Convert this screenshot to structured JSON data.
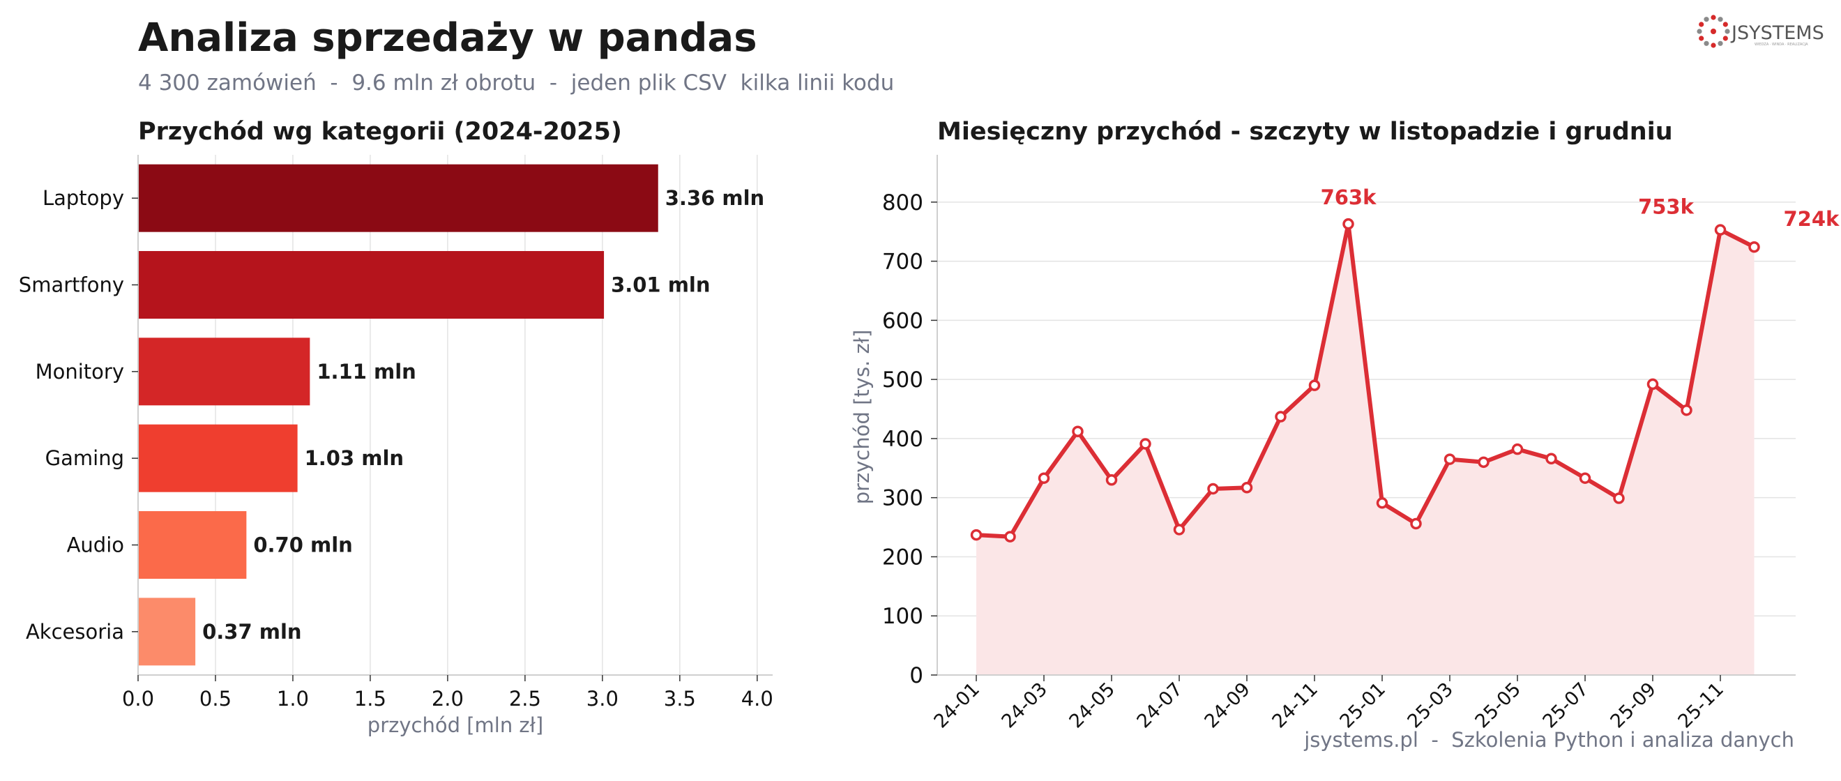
{
  "header": {
    "title": "Analiza sprzedaży w pandas",
    "subtitle": "4 300 zamówień  -  9.6 mln zł obrotu  -  jeden plik CSV  kilka linii kodu"
  },
  "logo": {
    "text": "JSYSTEMS",
    "tagline": "WIEDZA · WINDA · REALIZACJA"
  },
  "footer": {
    "text": "jsystems.pl  -  Szkolenia Python i analiza danych"
  },
  "colors": {
    "bars": [
      "#8b0a14",
      "#b5141c",
      "#d42627",
      "#ef3e2f",
      "#fb6a4a",
      "#fc8b6a"
    ],
    "line": "#dc2e35",
    "fill": "#fbe6e7"
  },
  "chart_data": [
    {
      "type": "bar",
      "orientation": "horizontal",
      "title": "Przychód wg kategorii (2024-2025)",
      "xlabel": "przychód [mln zł]",
      "categories": [
        "Laptopy",
        "Smartfony",
        "Monitory",
        "Gaming",
        "Audio",
        "Akcesoria"
      ],
      "values": [
        3.36,
        3.01,
        1.11,
        1.03,
        0.7,
        0.37
      ],
      "value_labels": [
        "3.36 mln",
        "3.01 mln",
        "1.11 mln",
        "1.03 mln",
        "0.70 mln",
        "0.37 mln"
      ],
      "xlim": [
        0,
        4.1
      ],
      "xticks": [
        0.0,
        0.5,
        1.0,
        1.5,
        2.0,
        2.5,
        3.0,
        3.5,
        4.0
      ],
      "xtick_labels": [
        "0.0",
        "0.5",
        "1.0",
        "1.5",
        "2.0",
        "2.5",
        "3.0",
        "3.5",
        "4.0"
      ],
      "grid": "vertical"
    },
    {
      "type": "line",
      "title": "Miesięczny przychód - szczyty w listopadzie i grudniu",
      "ylabel": "przychód [tys. zł]",
      "x": [
        "24-01",
        "24-02",
        "24-03",
        "24-04",
        "24-05",
        "24-06",
        "24-07",
        "24-08",
        "24-09",
        "24-10",
        "24-11",
        "24-12",
        "25-01",
        "25-02",
        "25-03",
        "25-04",
        "25-05",
        "25-06",
        "25-07",
        "25-08",
        "25-09",
        "25-10",
        "25-11",
        "25-12"
      ],
      "values": [
        237,
        234,
        333,
        412,
        330,
        391,
        246,
        315,
        317,
        437,
        490,
        763,
        291,
        256,
        365,
        360,
        382,
        366,
        333,
        299,
        492,
        448,
        753,
        724
      ],
      "xtick_labels": [
        "24-01",
        "24-03",
        "24-05",
        "24-07",
        "24-09",
        "24-11",
        "25-01",
        "25-03",
        "25-05",
        "25-07",
        "25-09",
        "25-11"
      ],
      "ylim": [
        0,
        880
      ],
      "yticks": [
        0,
        100,
        200,
        300,
        400,
        500,
        600,
        700,
        800
      ],
      "ytick_labels": [
        "0",
        "100",
        "200",
        "300",
        "400",
        "500",
        "600",
        "700",
        "800"
      ],
      "grid": "horizontal",
      "annotations": [
        {
          "x": "24-12",
          "text": "763k"
        },
        {
          "x": "25-11",
          "text": "753k"
        },
        {
          "x": "25-12",
          "text": "724k"
        }
      ]
    }
  ]
}
